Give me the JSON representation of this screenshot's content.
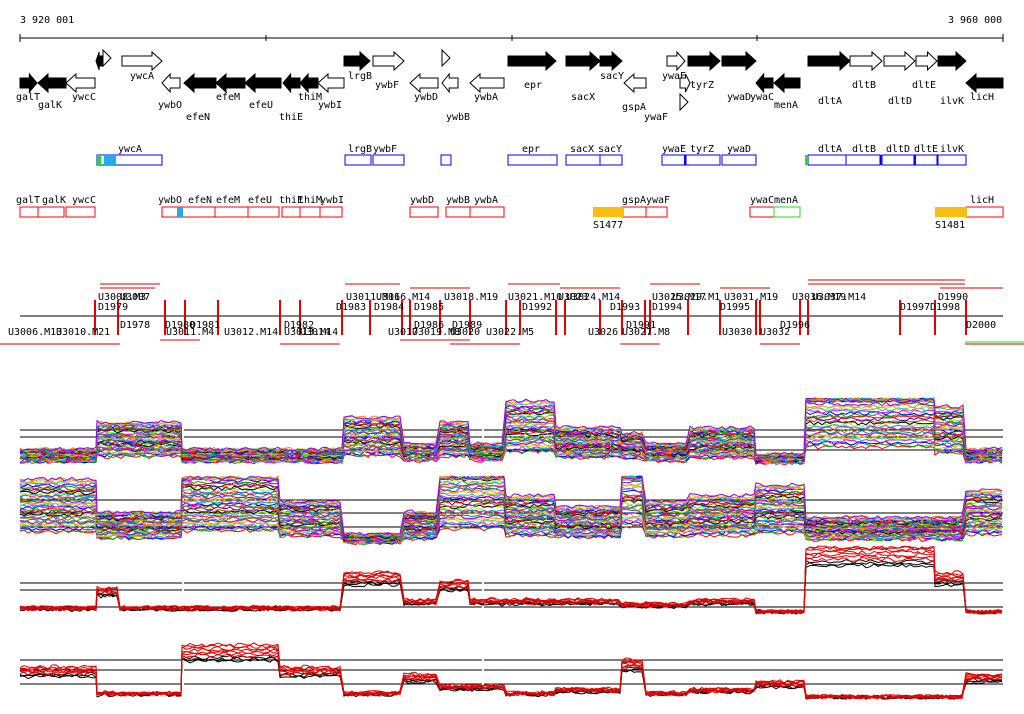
{
  "coords": {
    "start": "3 920 001",
    "end": "3 960 000"
  },
  "colors": {
    "gene_fill": "#000000",
    "feature_box": "#0000ff",
    "region_box": "#ff0000",
    "highlight_cyan": "#22aaee",
    "highlight_green": "#22dd22",
    "highlight_orange": "#f5be10",
    "track_black": "#000000",
    "track_red": "#e00000"
  },
  "genes": [
    {
      "label": "galT",
      "pos": "below"
    },
    {
      "label": "galK",
      "pos": "below"
    },
    {
      "label": "ywcC",
      "pos": "below"
    },
    {
      "label": "ywcA",
      "pos": "above"
    },
    {
      "label": "ywbO",
      "pos": "below"
    },
    {
      "label": "efeN",
      "pos": "below"
    },
    {
      "label": "efeM",
      "pos": "below"
    },
    {
      "label": "efeU",
      "pos": "below"
    },
    {
      "label": "thiE",
      "pos": "below"
    },
    {
      "label": "thiM",
      "pos": "below"
    },
    {
      "label": "ywbI",
      "pos": "below"
    },
    {
      "label": "lrgB",
      "pos": "above"
    },
    {
      "label": "ywbF",
      "pos": "below"
    },
    {
      "label": "ywbD",
      "pos": "below"
    },
    {
      "label": "ywbB",
      "pos": "below"
    },
    {
      "label": "ywbA",
      "pos": "below"
    },
    {
      "label": "epr",
      "pos": "below"
    },
    {
      "label": "sacX",
      "pos": "below"
    },
    {
      "label": "sacY",
      "pos": "above"
    },
    {
      "label": "gspA",
      "pos": "below"
    },
    {
      "label": "ywaE",
      "pos": "above"
    },
    {
      "label": "ywaF",
      "pos": "below"
    },
    {
      "label": "tyrZ",
      "pos": "below"
    },
    {
      "label": "ywaD",
      "pos": "below"
    },
    {
      "label": "ywaC",
      "pos": "below"
    },
    {
      "label": "menA",
      "pos": "below"
    },
    {
      "label": "dltA",
      "pos": "below"
    },
    {
      "label": "dltB",
      "pos": "below"
    },
    {
      "label": "dltD",
      "pos": "below"
    },
    {
      "label": "dltE",
      "pos": "below"
    },
    {
      "label": "ilvK",
      "pos": "below"
    },
    {
      "label": "licH",
      "pos": "below"
    }
  ],
  "blue_features": [
    "ywcA",
    "lrgB",
    "ywbF",
    "epr",
    "sacX",
    "sacY",
    "ywaE",
    "tyrZ",
    "ywaD",
    "dltA",
    "dltB",
    "dltD",
    "dltE",
    "ilvK"
  ],
  "red_features": [
    "galT",
    "galK",
    "ywcC",
    "ywbO",
    "efeN",
    "efeM",
    "efeU",
    "thiE",
    "thiM",
    "ywbI",
    "ywbD",
    "ywbB",
    "ywbA",
    "gspA",
    "ywaF",
    "ywaC",
    "menA",
    "licH"
  ],
  "special_labels": [
    "S1477",
    "S1481"
  ],
  "upper_labels": [
    "U3008.M3",
    "U3007",
    "D1979",
    "U3011.M16",
    "U3016.M14",
    "D1983",
    "D1984",
    "D1985",
    "U3018.M19",
    "U3021.M10",
    "U3024.M14",
    "U3023",
    "U3025.M17",
    "U3029.M1",
    "U3031.M19",
    "U3036.M19",
    "U3037.M14",
    "D1990",
    "D1992",
    "D1993",
    "D1994",
    "D1995",
    "D1997",
    "D1998"
  ],
  "lower_labels": [
    "U3006.M13",
    "U3010.M21",
    "D1978",
    "D1980",
    "D1981",
    "U3011.M4",
    "U3012.M14",
    "D1982",
    "U3013.M14",
    "U3014",
    "U3017",
    "D1986",
    "U3019.M8",
    "U3020",
    "U3022.M5",
    "D1989",
    "U3026",
    "U3027.M8",
    "D1991",
    "U3030",
    "U3032",
    "D1996",
    "D2000"
  ]
}
